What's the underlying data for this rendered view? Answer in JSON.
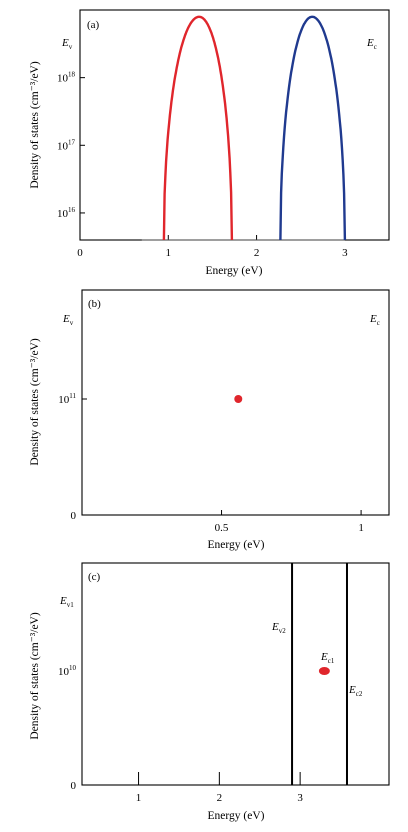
{
  "chart_data": [
    {
      "type": "line",
      "panel_label": "(a)",
      "xlabel": "Energy (eV)",
      "ylabel": "Density of states (cm⁻³/eV)",
      "y_scale": "log",
      "xlim": [
        0,
        3.5
      ],
      "ylim_log10": [
        15.6,
        19.0
      ],
      "x_ticks": [
        {
          "v": 0,
          "label": "0"
        },
        {
          "v": 1,
          "label": "1"
        },
        {
          "v": 2,
          "label": "2"
        },
        {
          "v": 3,
          "label": "3"
        }
      ],
      "y_ticks": [
        {
          "exp": 16,
          "label": "10",
          "sup": "16"
        },
        {
          "exp": 17,
          "label": "10",
          "sup": "17"
        },
        {
          "exp": 18,
          "label": "10",
          "sup": "18"
        }
      ],
      "annotations": [
        {
          "text": "E",
          "sub": "v",
          "side": "left"
        },
        {
          "text": "E",
          "sub": "c",
          "side": "right"
        }
      ],
      "series": [
        {
          "color": "#e0262c",
          "x0": 0.95,
          "x1": 1.72,
          "peak_x": 1.35,
          "peak_log10": 18.9
        },
        {
          "color": "#203a8f",
          "x0": 2.27,
          "x1": 3.0,
          "peak_x": 2.63,
          "peak_log10": 18.9
        }
      ],
      "baseline": {
        "x0": 0.7,
        "x1": 3.0,
        "log10": 15.6
      }
    },
    {
      "type": "scatter",
      "panel_label": "(b)",
      "xlabel": "Energy (eV)",
      "ylabel": "Density of states (cm⁻³/eV)",
      "xlim": [
        0,
        1.1
      ],
      "x_ticks": [
        {
          "v": 0.5,
          "label": "0.5"
        },
        {
          "v": 1,
          "label": "1"
        }
      ],
      "y_ticks": [
        {
          "pos": "zero",
          "label": "0"
        },
        {
          "pos": "mid",
          "label": "10",
          "sup": "11"
        }
      ],
      "annotations": [
        {
          "text": "E",
          "sub": "v",
          "side": "left"
        },
        {
          "text": "E",
          "sub": "c",
          "side": "right"
        }
      ],
      "points": [
        {
          "x": 0.56,
          "value": "10^11",
          "color": "#e0262c"
        }
      ]
    },
    {
      "type": "line",
      "panel_label": "(c)",
      "xlabel": "Energy (eV)",
      "ylabel": "Density of states (cm⁻³/eV)",
      "xlim": [
        0.3,
        4.1
      ],
      "x_ticks": [
        {
          "v": 1,
          "label": "1"
        },
        {
          "v": 2,
          "label": "2"
        },
        {
          "v": 3,
          "label": "3"
        }
      ],
      "y_ticks": [
        {
          "pos": "zero",
          "label": "0"
        },
        {
          "pos": "mid",
          "label": "10",
          "sup": "10"
        }
      ],
      "vlines": [
        {
          "x": 2.9
        },
        {
          "x": 3.58
        }
      ],
      "annotations": [
        {
          "text": "E",
          "sub": "v1",
          "side": "left"
        },
        {
          "text": "E",
          "sub": "v2",
          "near": "vline1"
        },
        {
          "text": "E",
          "sub": "c1",
          "near": "dot"
        },
        {
          "text": "E",
          "sub": "c2",
          "near": "vline2"
        }
      ],
      "points": [
        {
          "x": 3.3,
          "value": "10^10",
          "color": "#e0262c"
        }
      ]
    }
  ]
}
